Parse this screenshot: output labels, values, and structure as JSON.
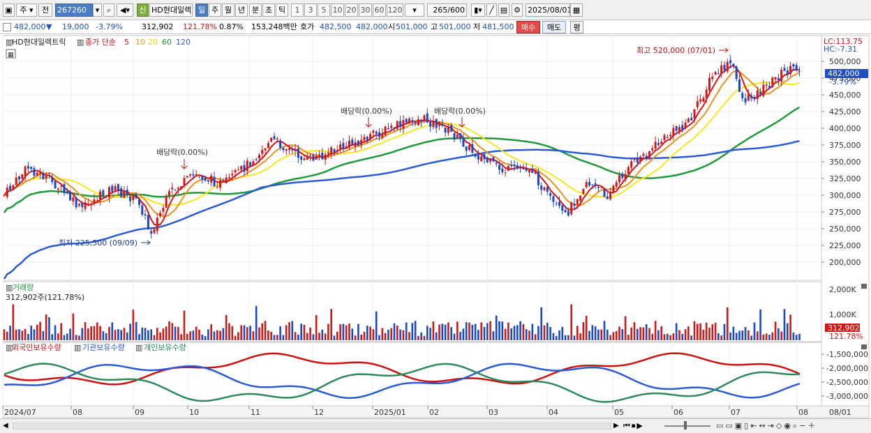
{
  "toolbar": {
    "period_label": "주",
    "prev_label": "전",
    "code_value": "267260",
    "flag_label": "신",
    "stock_name": "HD현대일렉",
    "tabs": [
      "일",
      "주",
      "월",
      "년",
      "분",
      "초",
      "틱"
    ],
    "intervals": [
      "1",
      "3",
      "5",
      "10",
      "20",
      "30",
      "60",
      "120"
    ],
    "count_value": "265",
    "count_total": "/600",
    "date_value": "2025/08/01"
  },
  "quote": {
    "price": "482,000",
    "change_symbol": "▼",
    "change": "19,000",
    "change_pct": "-3.79%",
    "volume": "312,902",
    "volume_ratio": "121.78%",
    "turnover_pct": "0.87%",
    "trade_value": "153,248백만",
    "bid_label": "호가",
    "ask": "482,500",
    "bid": "482,000",
    "open_label": "시",
    "open": "501,000",
    "high_label": "고",
    "high": "501,000",
    "low_label": "저",
    "low": "481,500",
    "buy_label": "매수",
    "sell_label": "매도",
    "avg_label": "평"
  },
  "price_pane": {
    "name": "HD현대일렉트릭",
    "legend_prefix": "종가 단순",
    "ma_periods": [
      "5",
      "10",
      "20",
      "60",
      "120"
    ],
    "lc": "LC:113.75",
    "hc": "HC:-7.31",
    "current_tag": "482,000",
    "current_pct": "-3.79%",
    "annotations": {
      "high": "최고 520,000 (07/01)",
      "low": "최저 225,500 (09/09)",
      "dividend": "배당락(0.00%)"
    },
    "y_ticks": [
      "500,000",
      "475,000",
      "450,000",
      "425,000",
      "400,000",
      "375,000",
      "350,000",
      "325,000",
      "300,000",
      "275,000",
      "250,000",
      "225,000",
      "200,000"
    ]
  },
  "volume_pane": {
    "title": "거래량",
    "value_text": "312,902주(121.78%)",
    "y_ticks": [
      "2,000K",
      "1,000K"
    ],
    "current_tag": "312,902",
    "current_pct": "121.78%"
  },
  "holding_pane": {
    "series": [
      "외국인보유수량",
      "기관보유수량",
      "개인보유수량"
    ],
    "y_ticks": [
      "-1,500,000",
      "-2,000,000",
      "-2,500,000",
      "-3,000,000"
    ]
  },
  "x_axis": [
    "2024/07",
    "08",
    "09",
    "10",
    "11",
    "12",
    "2025/01",
    "02",
    "03",
    "04",
    "05",
    "06",
    "07",
    "08"
  ],
  "x_axis_right": "08/01",
  "colors": {
    "ma5": "#e01010",
    "ma10": "#f0901a",
    "ma20": "#f5e81c",
    "ma60": "#1e9a3a",
    "ma120": "#2a5ad8",
    "up": "#d01818",
    "down": "#1a48c8"
  }
}
